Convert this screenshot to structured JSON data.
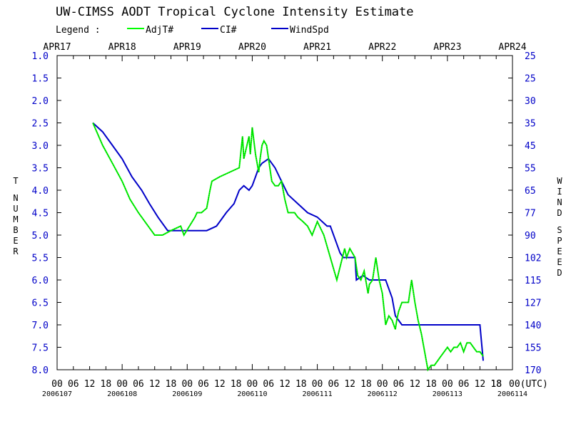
{
  "chart_data": {
    "type": "line",
    "title": "UW-CIMSS AODT Tropical Cyclone Intensity Estimate",
    "legend": {
      "label": "Legend :",
      "placement": "top-left",
      "entries": [
        {
          "name": "AdjT#",
          "color": "#00ff00"
        },
        {
          "name": "CI#",
          "color": "#0000c8"
        },
        {
          "name": "WindSpd",
          "color": "#0000c8"
        }
      ]
    },
    "x_top_labels": [
      "APR17",
      "APR18",
      "APR19",
      "APR20",
      "APR21",
      "APR22",
      "APR23",
      "APR24"
    ],
    "x_hour_labels": [
      "00",
      "06",
      "12",
      "18"
    ],
    "x_end_label": "00(UTC)",
    "x_date_labels": [
      "2006107",
      "2006108",
      "2006109",
      "2006110",
      "2006111",
      "2006112",
      "2006113",
      "2006114"
    ],
    "x_range_days": [
      17,
      24
    ],
    "ylabel_left": "T NUMBER",
    "ylabel_right": "WIND SPEED",
    "y_left_ticks": [
      "1.0",
      "1.5",
      "2.0",
      "2.5",
      "3.0",
      "3.5",
      "4.0",
      "4.5",
      "5.0",
      "5.5",
      "6.0",
      "6.5",
      "7.0",
      "7.5",
      "8.0"
    ],
    "y_right_ticks": [
      "25",
      "25",
      "25",
      "30",
      "35",
      "45",
      "55",
      "65",
      "77",
      "90",
      "102",
      "115",
      "127",
      "140",
      "155",
      "170"
    ],
    "ylim": [
      1.0,
      8.0
    ],
    "y_inverted": true,
    "grid": false,
    "series": [
      {
        "name": "AdjT#",
        "color": "#00ff00",
        "x_day": [
          17.55,
          17.7,
          17.85,
          18.0,
          18.12,
          18.25,
          18.4,
          18.5,
          18.62,
          18.75,
          18.9,
          18.95,
          19.12,
          19.15,
          19.22,
          19.3,
          19.35,
          19.38,
          19.5,
          19.8,
          19.85,
          19.87,
          19.95,
          19.97,
          20.0,
          20.05,
          20.1,
          20.12,
          20.15,
          20.18,
          20.22,
          20.3,
          20.35,
          20.4,
          20.45,
          20.5,
          20.55,
          20.6,
          20.65,
          20.7,
          20.78,
          20.85,
          20.92,
          21.0,
          21.1,
          21.3,
          21.42,
          21.45,
          21.5,
          21.58,
          21.62,
          21.67,
          21.72,
          21.78,
          21.8,
          21.85,
          21.9,
          21.95,
          22.0,
          22.03,
          22.05,
          22.1,
          22.15,
          22.2,
          22.22,
          22.25,
          22.3,
          22.35,
          22.4,
          22.45,
          22.5,
          22.55,
          22.6,
          22.7,
          22.75,
          22.8,
          22.85,
          22.9,
          22.95,
          23.0,
          23.05,
          23.1,
          23.15,
          23.2,
          23.25,
          23.3,
          23.35,
          23.4,
          23.45,
          23.5,
          23.55
        ],
        "values": [
          2.5,
          3.0,
          3.4,
          3.8,
          4.2,
          4.5,
          4.8,
          5.0,
          5.0,
          4.9,
          4.8,
          5.0,
          4.6,
          4.5,
          4.5,
          4.4,
          4.0,
          3.8,
          3.7,
          3.5,
          2.8,
          3.3,
          2.8,
          3.2,
          2.6,
          3.2,
          3.6,
          3.3,
          3.0,
          2.9,
          3.0,
          3.8,
          3.9,
          3.9,
          3.8,
          4.2,
          4.5,
          4.5,
          4.5,
          4.6,
          4.7,
          4.8,
          5.0,
          4.7,
          5.0,
          6.0,
          5.3,
          5.5,
          5.3,
          5.5,
          5.9,
          6.0,
          5.8,
          6.3,
          6.1,
          6.0,
          5.5,
          6.0,
          6.3,
          6.7,
          7.0,
          6.8,
          6.9,
          7.1,
          6.9,
          6.7,
          6.5,
          6.5,
          6.5,
          6.0,
          6.5,
          6.9,
          7.2,
          8.0,
          7.9,
          7.9,
          7.8,
          7.7,
          7.6,
          7.5,
          7.6,
          7.5,
          7.5,
          7.4,
          7.6,
          7.4,
          7.4,
          7.5,
          7.6,
          7.6,
          7.7
        ]
      },
      {
        "name": "CI#",
        "color": "#0000c8",
        "x_day": [
          17.55,
          17.7,
          17.85,
          18.0,
          18.15,
          18.3,
          18.42,
          18.55,
          18.7,
          18.85,
          19.0,
          19.15,
          19.3,
          19.45,
          19.5,
          19.6,
          19.72,
          19.8,
          19.87,
          19.95,
          20.0,
          20.05,
          20.1,
          20.15,
          20.25,
          20.35,
          20.45,
          20.55,
          20.7,
          20.85,
          21.0,
          21.15,
          21.2,
          21.35,
          21.4,
          21.5,
          21.58,
          21.6,
          21.7,
          21.8,
          21.85,
          21.95,
          22.05,
          22.15,
          22.2,
          22.3,
          22.45,
          22.55,
          22.62,
          22.7,
          22.8,
          22.95,
          23.0,
          23.1,
          23.2,
          23.3,
          23.4,
          23.5,
          23.55
        ],
        "values": [
          2.5,
          2.7,
          3.0,
          3.3,
          3.7,
          4.0,
          4.3,
          4.6,
          4.9,
          4.9,
          4.9,
          4.9,
          4.9,
          4.8,
          4.7,
          4.5,
          4.3,
          4.0,
          3.9,
          4.0,
          3.9,
          3.7,
          3.5,
          3.4,
          3.3,
          3.5,
          3.8,
          4.1,
          4.3,
          4.5,
          4.6,
          4.8,
          4.8,
          5.4,
          5.5,
          5.5,
          5.5,
          6.0,
          5.9,
          6.0,
          6.0,
          6.0,
          6.0,
          6.4,
          6.8,
          7.0,
          7.0,
          7.0,
          7.0,
          7.0,
          7.0,
          7.0,
          7.0,
          7.0,
          7.0,
          7.0,
          7.0,
          7.0,
          7.8
        ]
      }
    ]
  }
}
